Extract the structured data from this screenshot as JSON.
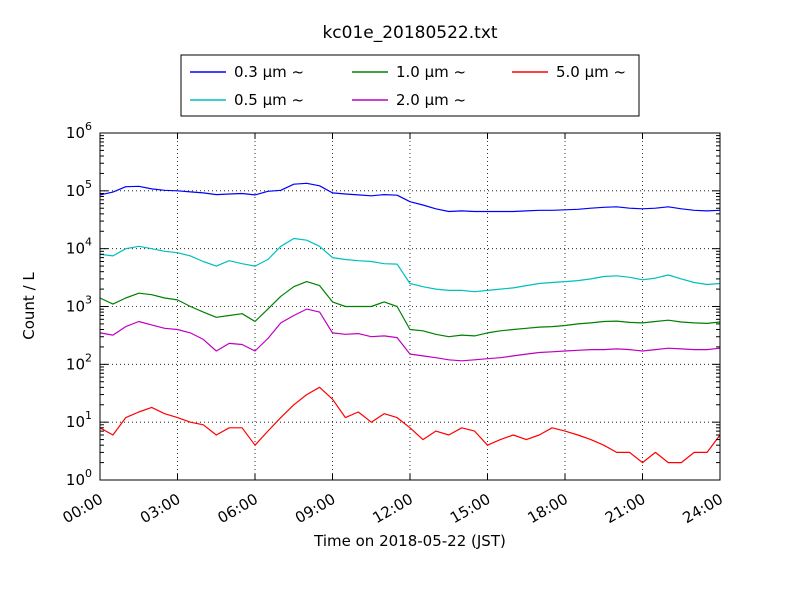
{
  "chart_data": {
    "type": "line",
    "title": "kc01e_20180522.txt",
    "xlabel": "Time on 2018-05-22 (JST)",
    "ylabel": "Count / L",
    "yscale": "log",
    "ylim": [
      1,
      1000000
    ],
    "xlim": [
      "00:00",
      "24:00"
    ],
    "grid": true,
    "legend_position": "top-center",
    "x_ticks": [
      "00:00",
      "03:00",
      "06:00",
      "09:00",
      "12:00",
      "15:00",
      "18:00",
      "21:00",
      "24:00"
    ],
    "y_ticks": [
      {
        "base": "10",
        "exp": "0",
        "value": 1
      },
      {
        "base": "10",
        "exp": "1",
        "value": 10
      },
      {
        "base": "10",
        "exp": "2",
        "value": 100
      },
      {
        "base": "10",
        "exp": "3",
        "value": 1000
      },
      {
        "base": "10",
        "exp": "4",
        "value": 10000
      },
      {
        "base": "10",
        "exp": "5",
        "value": 100000
      },
      {
        "base": "10",
        "exp": "6",
        "value": 1000000
      }
    ],
    "x": [
      "00:00",
      "00:30",
      "01:00",
      "01:30",
      "02:00",
      "02:30",
      "03:00",
      "03:30",
      "04:00",
      "04:30",
      "05:00",
      "05:30",
      "06:00",
      "06:30",
      "07:00",
      "07:30",
      "08:00",
      "08:30",
      "09:00",
      "09:30",
      "10:00",
      "10:30",
      "11:00",
      "11:30",
      "12:00",
      "12:30",
      "13:00",
      "13:30",
      "14:00",
      "14:30",
      "15:00",
      "15:30",
      "16:00",
      "16:30",
      "17:00",
      "17:30",
      "18:00",
      "18:30",
      "19:00",
      "19:30",
      "20:00",
      "20:30",
      "21:00",
      "21:30",
      "22:00",
      "22:30",
      "23:00",
      "23:30",
      "24:00"
    ],
    "series": [
      {
        "name": "0.3 μm ~",
        "color": "#0000ff",
        "values": [
          85000,
          95000,
          118000,
          120000,
          108000,
          102000,
          100000,
          96000,
          92000,
          86000,
          88000,
          90000,
          85000,
          98000,
          102000,
          130000,
          135000,
          122000,
          92000,
          88000,
          85000,
          82000,
          86000,
          84000,
          65000,
          57000,
          49000,
          44000,
          45000,
          44000,
          44000,
          44000,
          44000,
          45000,
          46000,
          46000,
          47000,
          48000,
          50000,
          52000,
          53000,
          50000,
          49000,
          50000,
          53000,
          49000,
          46000,
          45000,
          46000
        ]
      },
      {
        "name": "0.5 μm ~",
        "color": "#00bfbf",
        "values": [
          8000,
          7500,
          10000,
          11000,
          10000,
          9000,
          8500,
          7500,
          6000,
          5000,
          6200,
          5500,
          5000,
          6500,
          11000,
          15000,
          14000,
          11000,
          7000,
          6500,
          6200,
          6000,
          5500,
          5400,
          2500,
          2200,
          2000,
          1900,
          1900,
          1800,
          1900,
          2000,
          2100,
          2300,
          2500,
          2600,
          2700,
          2800,
          3000,
          3300,
          3400,
          3200,
          2900,
          3100,
          3500,
          3000,
          2600,
          2400,
          2500
        ]
      },
      {
        "name": "1.0 μm ~",
        "color": "#008000",
        "values": [
          1400,
          1100,
          1400,
          1700,
          1600,
          1400,
          1300,
          1000,
          800,
          650,
          700,
          750,
          550,
          900,
          1500,
          2200,
          2700,
          2300,
          1200,
          1000,
          1000,
          1000,
          1200,
          1000,
          400,
          380,
          330,
          300,
          320,
          310,
          350,
          380,
          400,
          420,
          440,
          450,
          470,
          500,
          520,
          550,
          560,
          530,
          520,
          550,
          580,
          540,
          520,
          510,
          540
        ]
      },
      {
        "name": "2.0 μm ~",
        "color": "#bf00bf",
        "values": [
          350,
          320,
          450,
          550,
          480,
          420,
          400,
          350,
          270,
          170,
          230,
          220,
          170,
          280,
          520,
          700,
          900,
          800,
          350,
          330,
          340,
          300,
          310,
          290,
          150,
          140,
          130,
          120,
          115,
          120,
          125,
          130,
          140,
          150,
          160,
          165,
          170,
          175,
          180,
          180,
          185,
          180,
          170,
          180,
          190,
          185,
          180,
          180,
          190
        ]
      },
      {
        "name": "5.0 μm ~",
        "color": "#ff0000",
        "values": [
          8,
          6,
          12,
          15,
          18,
          14,
          12,
          10,
          9,
          6,
          8,
          8,
          4,
          7,
          12,
          20,
          30,
          40,
          25,
          12,
          15,
          10,
          14,
          12,
          8,
          5,
          7,
          6,
          8,
          7,
          4,
          5,
          6,
          5,
          6,
          8,
          7,
          6,
          5,
          4,
          3,
          3,
          2,
          3,
          2,
          2,
          3,
          3,
          6
        ]
      }
    ]
  }
}
